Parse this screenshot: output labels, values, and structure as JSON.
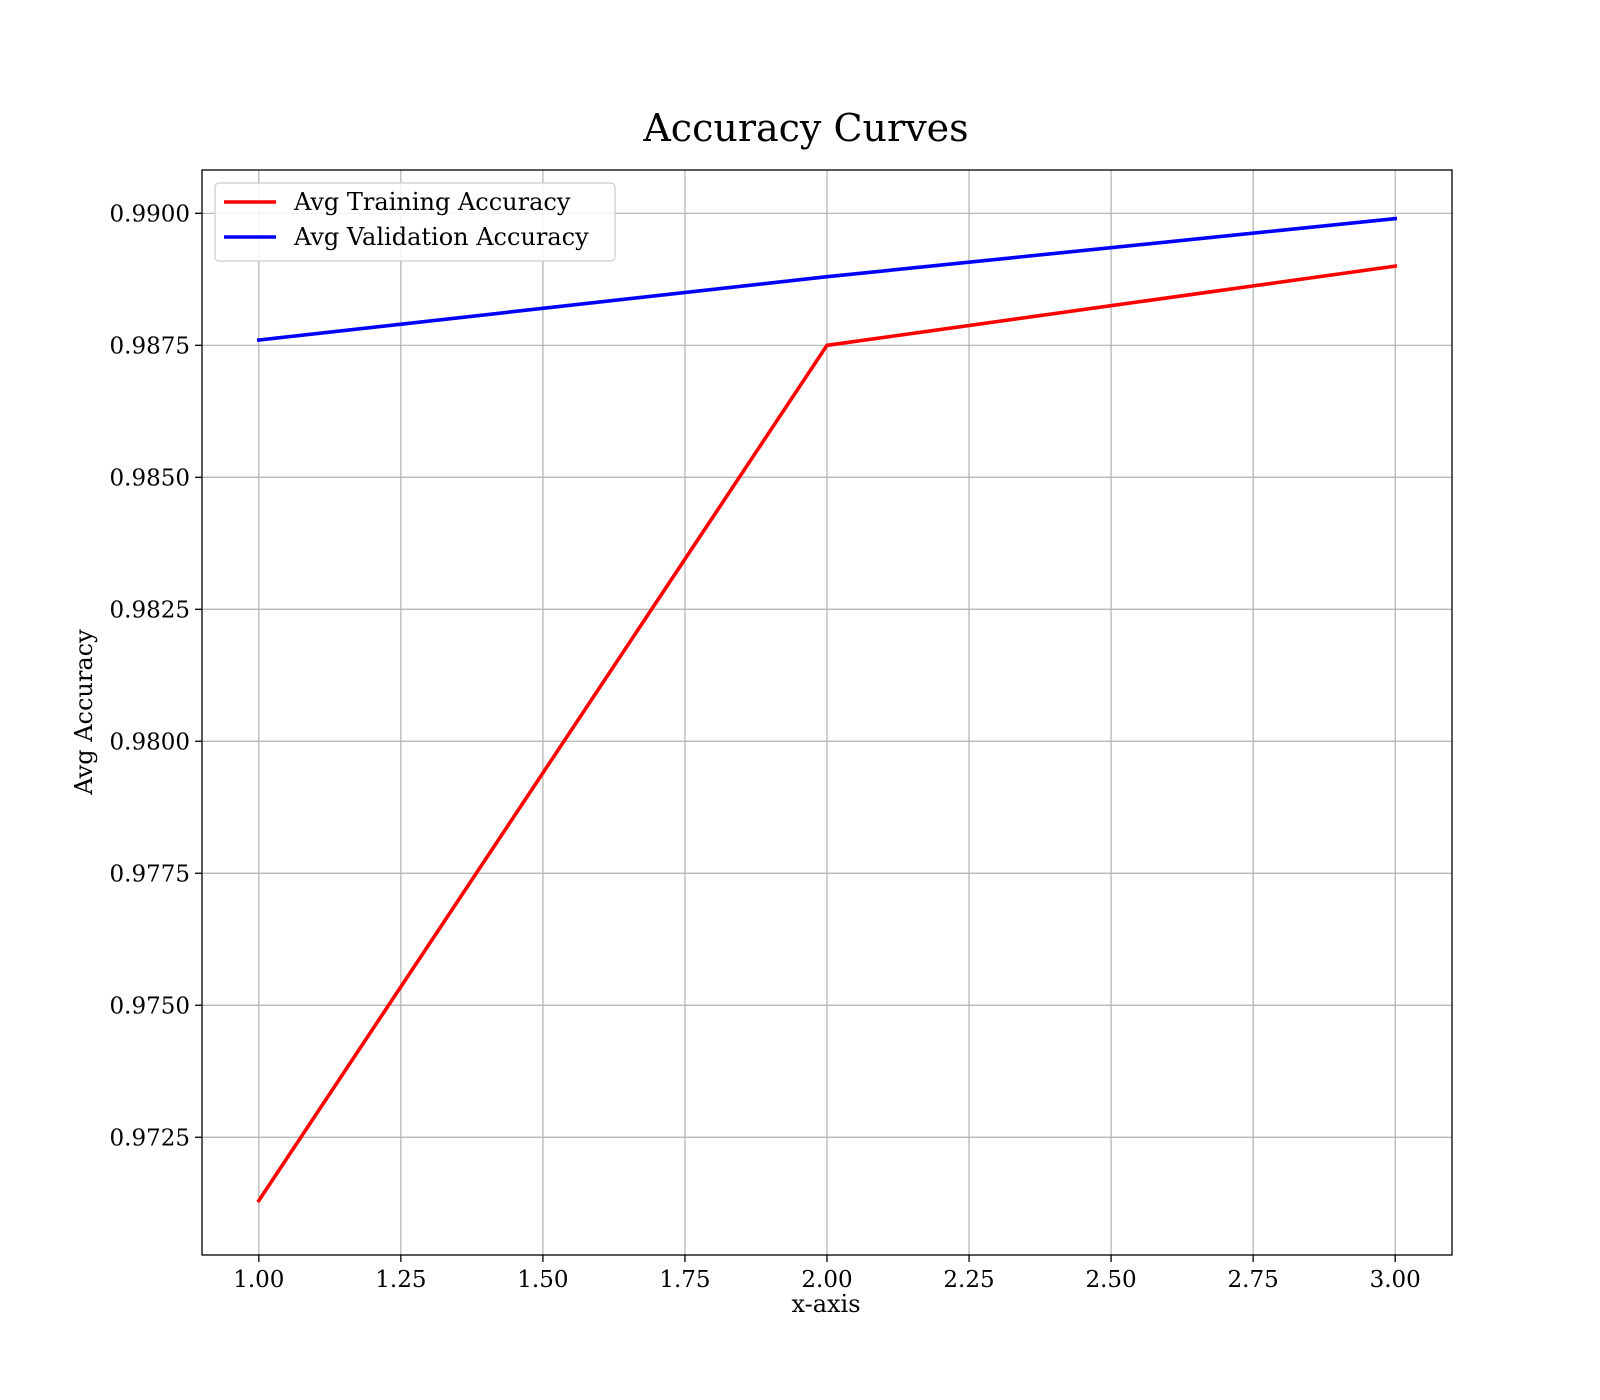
{
  "chart_data": {
    "type": "line",
    "title": "Accuracy Curves",
    "xlabel": "x-axis",
    "ylabel": "Avg Accuracy",
    "xlim": [
      0.9,
      3.1
    ],
    "ylim": [
      0.97027,
      0.99082
    ],
    "grid": true,
    "legend": "top-left",
    "xticks": [
      1.0,
      1.25,
      1.5,
      1.75,
      2.0,
      2.25,
      2.5,
      2.75,
      3.0
    ],
    "xtick_labels": [
      "1.00",
      "1.25",
      "1.50",
      "1.75",
      "2.00",
      "2.25",
      "2.50",
      "2.75",
      "3.00"
    ],
    "yticks": [
      0.9725,
      0.975,
      0.9775,
      0.98,
      0.9825,
      0.985,
      0.9875,
      0.99
    ],
    "ytick_labels": [
      "0.9725",
      "0.9750",
      "0.9775",
      "0.9800",
      "0.9825",
      "0.9850",
      "0.9875",
      "0.9900"
    ],
    "x": [
      1.0,
      2.0,
      3.0
    ],
    "series": [
      {
        "name": "Avg Training Accuracy",
        "color": "#ff0000",
        "values": [
          0.9713,
          0.9875,
          0.989
        ]
      },
      {
        "name": "Avg Validation Accuracy",
        "color": "#0000ff",
        "values": [
          0.9876,
          0.9888,
          0.9899
        ]
      }
    ]
  }
}
